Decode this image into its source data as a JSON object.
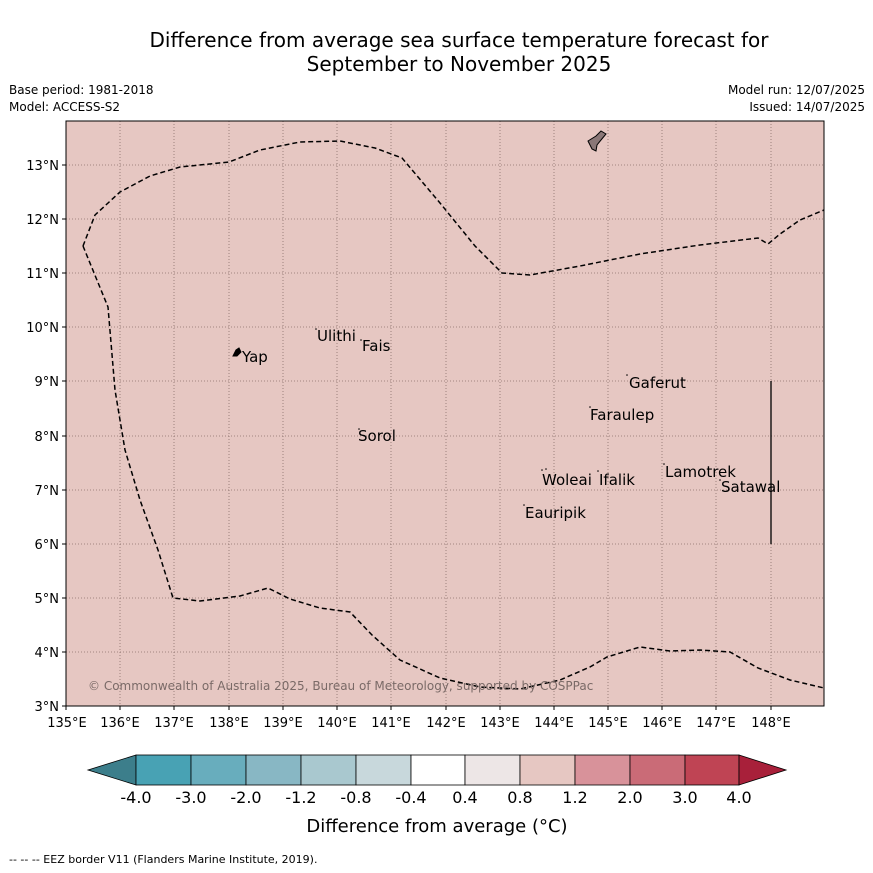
{
  "title": {
    "line1": "Difference from average sea surface temperature forecast for",
    "line2": "September to November 2025"
  },
  "meta": {
    "base_period": "Base period: 1981-2018",
    "model": "Model: ACCESS-S2",
    "model_run": "Model run: 12/07/2025",
    "issued": "Issued: 14/07/2025"
  },
  "map": {
    "fill_color": "#e6c7c2",
    "lat_labels": [
      "13°N",
      "12°N",
      "11°N",
      "10°N",
      "9°N",
      "8°N",
      "7°N",
      "6°N",
      "5°N",
      "4°N",
      "3°N"
    ],
    "lon_labels": [
      "135°E",
      "136°E",
      "137°E",
      "138°E",
      "139°E",
      "140°E",
      "141°E",
      "142°E",
      "143°E",
      "144°E",
      "145°E",
      "146°E",
      "147°E",
      "148°E"
    ],
    "places": [
      "Yap",
      "Ulithi",
      "Fais",
      "Sorol",
      "Gaferut",
      "Faraulep",
      "Lamotrek",
      "Woleai",
      "Ifalik",
      "Satawal",
      "Eauripik"
    ],
    "copyright": "© Commonwealth of Australia 2025, Bureau of Meteorology, supported by COSPPac"
  },
  "colorbar": {
    "ticks": [
      "-4.0",
      "-3.0",
      "-2.0",
      "-1.2",
      "-0.8",
      "-0.4",
      "0.4",
      "0.8",
      "1.2",
      "2.0",
      "3.0",
      "4.0"
    ],
    "colors": [
      "#3c7e8b",
      "#48a2b4",
      "#68adbd",
      "#88b7c4",
      "#a9c8cf",
      "#c8d8dc",
      "#ffffff",
      "#ede6e6",
      "#e6c7c2",
      "#d8929a",
      "#ca6b77",
      "#bf4454",
      "#a8203a"
    ],
    "label": "Difference from average (°C)"
  },
  "legend": {
    "eez": "-- -- -- EEZ border V11 (Flanders Marine Institute, 2019)."
  }
}
